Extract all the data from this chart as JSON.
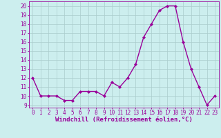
{
  "x": [
    0,
    1,
    2,
    3,
    4,
    5,
    6,
    7,
    8,
    9,
    10,
    11,
    12,
    13,
    14,
    15,
    16,
    17,
    18,
    19,
    20,
    21,
    22,
    23
  ],
  "y": [
    12,
    10,
    10,
    10,
    9.5,
    9.5,
    10.5,
    10.5,
    10.5,
    10,
    11.5,
    11,
    12,
    13.5,
    16.5,
    18,
    19.5,
    20,
    20,
    16,
    13,
    11,
    9,
    10
  ],
  "line_color": "#990099",
  "marker": "D",
  "marker_size": 2.0,
  "xlabel": "Windchill (Refroidissement éolien,°C)",
  "bg_color": "#cceeee",
  "grid_color": "#aacccc",
  "tick_color": "#990099",
  "label_color": "#990099",
  "ylim_min": 9,
  "ylim_max": 20.5,
  "yticks": [
    9,
    10,
    11,
    12,
    13,
    14,
    15,
    16,
    17,
    18,
    19,
    20
  ],
  "xticks": [
    0,
    1,
    2,
    3,
    4,
    5,
    6,
    7,
    8,
    9,
    10,
    11,
    12,
    13,
    14,
    15,
    16,
    17,
    18,
    19,
    20,
    21,
    22,
    23
  ],
  "tick_fontsize": 5.5,
  "xlabel_fontsize": 6.5,
  "linewidth": 1.0
}
